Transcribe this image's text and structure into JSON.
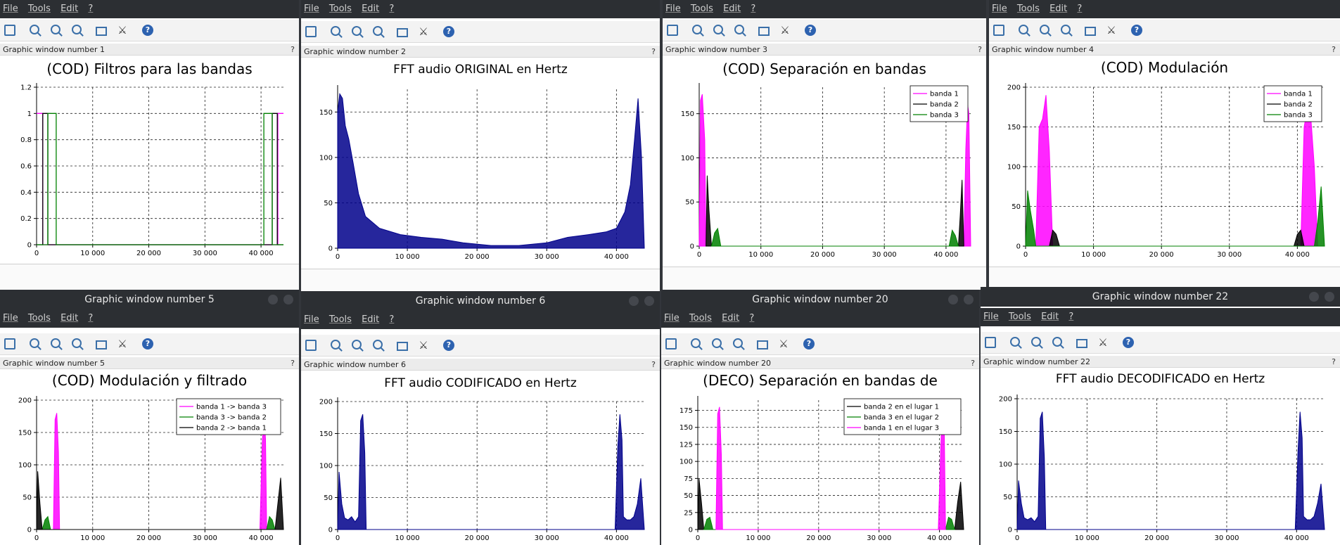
{
  "menu": [
    "File",
    "Tools",
    "Edit",
    "?"
  ],
  "toolbar_icons": [
    "rotate-icon",
    "zoom-in-icon",
    "zoom-area-icon",
    "zoom-out-icon",
    "frame-icon",
    "datatip-icon",
    "help-icon"
  ],
  "colors": {
    "magenta": "#ff00ff",
    "black": "#000000",
    "green": "#008000",
    "navy": "#00008b",
    "titlebar": "#2c2f33"
  },
  "windows": [
    {
      "id": "w1",
      "label": "Graphic window number 1",
      "window_title": "",
      "chart_data": {
        "type": "line",
        "title": "(COD) Filtros para las bandas",
        "xlim": [
          0,
          44000
        ],
        "ylim": [
          0,
          1.2
        ],
        "yticks": [
          0,
          0.2,
          0.4,
          0.6,
          0.8,
          1,
          1.2
        ],
        "ytick_labels": [
          "0",
          "0.2",
          "0.4",
          "0.6",
          "0.8",
          "1",
          "1.2"
        ],
        "xticks": [
          0,
          10000,
          20000,
          30000,
          40000
        ],
        "xtick_labels": [
          "0",
          "10 000",
          "20 000",
          "30 000",
          "40 000"
        ],
        "grid": true,
        "series": [
          {
            "color": "#ff00ff",
            "x": [
              0,
              1100,
              1100,
              43000,
              43000,
              44000
            ],
            "y": [
              1,
              1,
              0,
              0,
              1,
              1
            ]
          },
          {
            "color": "#000000",
            "x": [
              0,
              1100,
              1100,
              2000,
              2000,
              42000,
              42000,
              42900,
              42900,
              44000
            ],
            "y": [
              0,
              0,
              1,
              1,
              0,
              0,
              1,
              1,
              0,
              0
            ]
          },
          {
            "color": "#008000",
            "x": [
              0,
              2000,
              2000,
              3500,
              3500,
              40500,
              40500,
              42000,
              42000,
              44000
            ],
            "y": [
              0,
              0,
              1,
              1,
              0,
              0,
              1,
              1,
              0,
              0
            ]
          }
        ]
      }
    },
    {
      "id": "w2",
      "label": "Graphic window number 2",
      "window_title": "",
      "chart_data": {
        "type": "area",
        "title": "FFT audio ORIGINAL en Hertz",
        "xlim": [
          0,
          44000
        ],
        "ylim": [
          0,
          175
        ],
        "yticks": [
          0,
          50,
          100,
          150
        ],
        "ytick_labels": [
          "0",
          "50",
          "100",
          "150"
        ],
        "xticks": [
          0,
          10000,
          20000,
          30000,
          40000
        ],
        "xtick_labels": [
          "0",
          "10 000",
          "20 000",
          "30 000",
          "40 000"
        ],
        "grid": true,
        "series": [
          {
            "color": "#00008b",
            "x": [
              0,
              300,
              700,
              1100,
              1600,
              2200,
              3000,
              4000,
              6000,
              9000,
              12000,
              15000,
              18000,
              22000,
              26000,
              30000,
              33000,
              36000,
              38500,
              40000,
              41200,
              42000,
              42600,
              43100,
              43600,
              44000
            ],
            "y": [
              150,
              170,
              165,
              135,
              120,
              95,
              60,
              35,
              22,
              15,
              12,
              10,
              6,
              3,
              3,
              6,
              12,
              15,
              18,
              22,
              40,
              70,
              120,
              165,
              100,
              0
            ]
          }
        ]
      }
    },
    {
      "id": "w3",
      "label": "Graphic window number 3",
      "window_title": "",
      "chart_data": {
        "type": "area",
        "title": "(COD) Separación en bandas",
        "xlim": [
          0,
          44000
        ],
        "ylim": [
          0,
          180
        ],
        "yticks": [
          0,
          50,
          100,
          150
        ],
        "ytick_labels": [
          "0",
          "50",
          "100",
          "150"
        ],
        "xticks": [
          0,
          10000,
          20000,
          30000,
          40000
        ],
        "xtick_labels": [
          "0",
          "10 000",
          "20 000",
          "30 000",
          "40 000"
        ],
        "grid": true,
        "legend": "top-right",
        "series": [
          {
            "name": "banda 1",
            "color": "#ff00ff",
            "x": [
              0,
              200,
              500,
              900,
              1100,
              42900,
              43200,
              43500,
              43700,
              44000
            ],
            "y": [
              0,
              165,
              172,
              120,
              0,
              0,
              110,
              160,
              150,
              0
            ]
          },
          {
            "name": "banda 2",
            "color": "#000000",
            "x": [
              1100,
              1300,
              1600,
              2000,
              42000,
              42300,
              42600,
              42900
            ],
            "y": [
              0,
              80,
              40,
              0,
              0,
              35,
              75,
              0
            ]
          },
          {
            "name": "banda 3",
            "color": "#008000",
            "x": [
              2000,
              2500,
              3000,
              3500,
              40500,
              41000,
              41500,
              42000
            ],
            "y": [
              0,
              15,
              20,
              0,
              0,
              18,
              12,
              0
            ]
          }
        ]
      }
    },
    {
      "id": "w4",
      "label": "Graphic window number 4",
      "window_title": "",
      "chart_data": {
        "type": "area",
        "title": "(COD) Modulación",
        "xlim": [
          0,
          44000
        ],
        "ylim": [
          0,
          200
        ],
        "yticks": [
          0,
          50,
          100,
          150,
          200
        ],
        "ytick_labels": [
          "0",
          "50",
          "100",
          "150",
          "200"
        ],
        "xticks": [
          0,
          10000,
          20000,
          30000,
          40000
        ],
        "xtick_labels": [
          "0",
          "10 000",
          "20 000",
          "30 000",
          "40 000"
        ],
        "grid": true,
        "legend": "top-right",
        "series": [
          {
            "name": "banda 1",
            "color": "#ff00ff",
            "x": [
              1500,
              2000,
              2500,
              3000,
              3500,
              4000,
              40500,
              41000,
              41500,
              42000,
              42500,
              43000
            ],
            "y": [
              0,
              150,
              160,
              190,
              120,
              0,
              0,
              150,
              175,
              160,
              100,
              0
            ]
          },
          {
            "name": "banda 2",
            "color": "#000000",
            "x": [
              3500,
              4000,
              4500,
              5000,
              39500,
              40000,
              40500,
              41000
            ],
            "y": [
              0,
              20,
              15,
              0,
              0,
              15,
              20,
              0
            ]
          },
          {
            "name": "banda 3",
            "color": "#008000",
            "x": [
              0,
              300,
              700,
              1200,
              1500,
              42500,
              43000,
              43500,
              44000
            ],
            "y": [
              0,
              70,
              45,
              20,
              0,
              0,
              30,
              75,
              0
            ]
          }
        ]
      }
    },
    {
      "id": "w5",
      "label": "Graphic window number 5",
      "window_title": "Graphic window number 5",
      "chart_data": {
        "type": "area",
        "title": "(COD) Modulación y filtrado",
        "xlim": [
          0,
          44000
        ],
        "ylim": [
          0,
          200
        ],
        "yticks": [
          0,
          50,
          100,
          150,
          200
        ],
        "ytick_labels": [
          "0",
          "50",
          "100",
          "150",
          "200"
        ],
        "xticks": [
          0,
          10000,
          20000,
          30000,
          40000
        ],
        "xtick_labels": [
          "0",
          "10 000",
          "20 000",
          "30 000",
          "40 000"
        ],
        "grid": true,
        "legend": "top-right",
        "series": [
          {
            "name": "banda 1 -> banda 3",
            "color": "#ff00ff",
            "x": [
              3000,
              3300,
              3600,
              3900,
              4100,
              39800,
              40200,
              40500,
              40800,
              41000
            ],
            "y": [
              0,
              170,
              180,
              120,
              0,
              0,
              130,
              180,
              140,
              0
            ]
          },
          {
            "name": "banda 3 -> banda 2",
            "color": "#008000",
            "x": [
              1000,
              1500,
              2000,
              2500,
              41000,
              41500,
              42000,
              42500
            ],
            "y": [
              0,
              15,
              20,
              0,
              0,
              20,
              15,
              0
            ]
          },
          {
            "name": "banda 2 -> banda 1",
            "color": "#000000",
            "x": [
              0,
              200,
              600,
              1000,
              42500,
              43000,
              43500,
              44000
            ],
            "y": [
              0,
              90,
              40,
              0,
              0,
              40,
              80,
              0
            ]
          }
        ]
      }
    },
    {
      "id": "w6",
      "label": "Graphic window number 6",
      "window_title": "Graphic window number 6",
      "chart_data": {
        "type": "area",
        "title": "FFT audio CODIFICADO en Hertz",
        "xlim": [
          0,
          44000
        ],
        "ylim": [
          0,
          200
        ],
        "yticks": [
          0,
          50,
          100,
          150,
          200
        ],
        "ytick_labels": [
          "0",
          "50",
          "100",
          "150",
          "200"
        ],
        "xticks": [
          0,
          10000,
          20000,
          30000,
          40000
        ],
        "xtick_labels": [
          "0",
          "10 000",
          "20 000",
          "30 000",
          "40 000"
        ],
        "grid": true,
        "series": [
          {
            "color": "#00008b",
            "x": [
              0,
              200,
              600,
              1000,
              1500,
              2000,
              2500,
              3000,
              3300,
              3600,
              3900,
              4100,
              39800,
              40200,
              40500,
              40800,
              41000,
              41500,
              42000,
              42500,
              43000,
              43500,
              44000
            ],
            "y": [
              0,
              90,
              40,
              18,
              15,
              20,
              12,
              20,
              170,
              180,
              120,
              0,
              0,
              130,
              180,
              140,
              20,
              15,
              15,
              20,
              40,
              80,
              0
            ]
          }
        ]
      }
    },
    {
      "id": "w20",
      "label": "Graphic window number 20",
      "window_title": "Graphic window number 20",
      "chart_data": {
        "type": "area",
        "title": "(DECO) Separación en bandas de",
        "xlim": [
          0,
          44000
        ],
        "ylim": [
          0,
          190
        ],
        "yticks": [
          0,
          25,
          50,
          75,
          100,
          125,
          150,
          175
        ],
        "ytick_labels": [
          "0",
          "25",
          "50",
          "75",
          "100",
          "125",
          "150",
          "175"
        ],
        "xticks": [
          0,
          10000,
          20000,
          30000,
          40000
        ],
        "xtick_labels": [
          "0",
          "10 000",
          "20 000",
          "30 000",
          "40 000"
        ],
        "grid": true,
        "legend": "top-right",
        "series": [
          {
            "name": "banda 2 en el lugar 1",
            "color": "#000000",
            "x": [
              0,
              200,
              600,
              1000,
              42500,
              43000,
              43500,
              44000
            ],
            "y": [
              0,
              75,
              40,
              0,
              0,
              40,
              70,
              0
            ]
          },
          {
            "name": "banda 3 en el lugar 2",
            "color": "#008000",
            "x": [
              1000,
              1500,
              2000,
              2500,
              41000,
              41500,
              42000,
              42500
            ],
            "y": [
              0,
              15,
              18,
              0,
              0,
              18,
              15,
              0
            ]
          },
          {
            "name": "banda 1 en el lugar 3",
            "color": "#ff00ff",
            "x": [
              3000,
              3300,
              3600,
              3900,
              4100,
              39800,
              40200,
              40500,
              40800,
              41000
            ],
            "y": [
              0,
              170,
              180,
              110,
              0,
              0,
              120,
              180,
              140,
              0
            ]
          }
        ]
      }
    },
    {
      "id": "w22",
      "label": "Graphic window number 22",
      "window_title": "Graphic window number 22",
      "chart_data": {
        "type": "area",
        "title": "FFT audio DECODIFICADO en Hertz",
        "xlim": [
          0,
          44000
        ],
        "ylim": [
          0,
          200
        ],
        "yticks": [
          0,
          50,
          100,
          150,
          200
        ],
        "ytick_labels": [
          "0",
          "50",
          "100",
          "150",
          "200"
        ],
        "xticks": [
          0,
          10000,
          20000,
          30000,
          40000
        ],
        "xtick_labels": [
          "0",
          "10 000",
          "20 000",
          "30 000",
          "40 000"
        ],
        "grid": true,
        "series": [
          {
            "color": "#00008b",
            "x": [
              0,
              200,
              600,
              1000,
              1500,
              2000,
              2500,
              3000,
              3300,
              3600,
              3900,
              4100,
              39800,
              40200,
              40500,
              40800,
              41000,
              41500,
              42000,
              42500,
              43000,
              43500,
              44000
            ],
            "y": [
              0,
              75,
              40,
              18,
              15,
              18,
              12,
              20,
              170,
              180,
              110,
              0,
              0,
              120,
              180,
              140,
              20,
              15,
              15,
              20,
              40,
              70,
              0
            ]
          }
        ]
      }
    }
  ]
}
